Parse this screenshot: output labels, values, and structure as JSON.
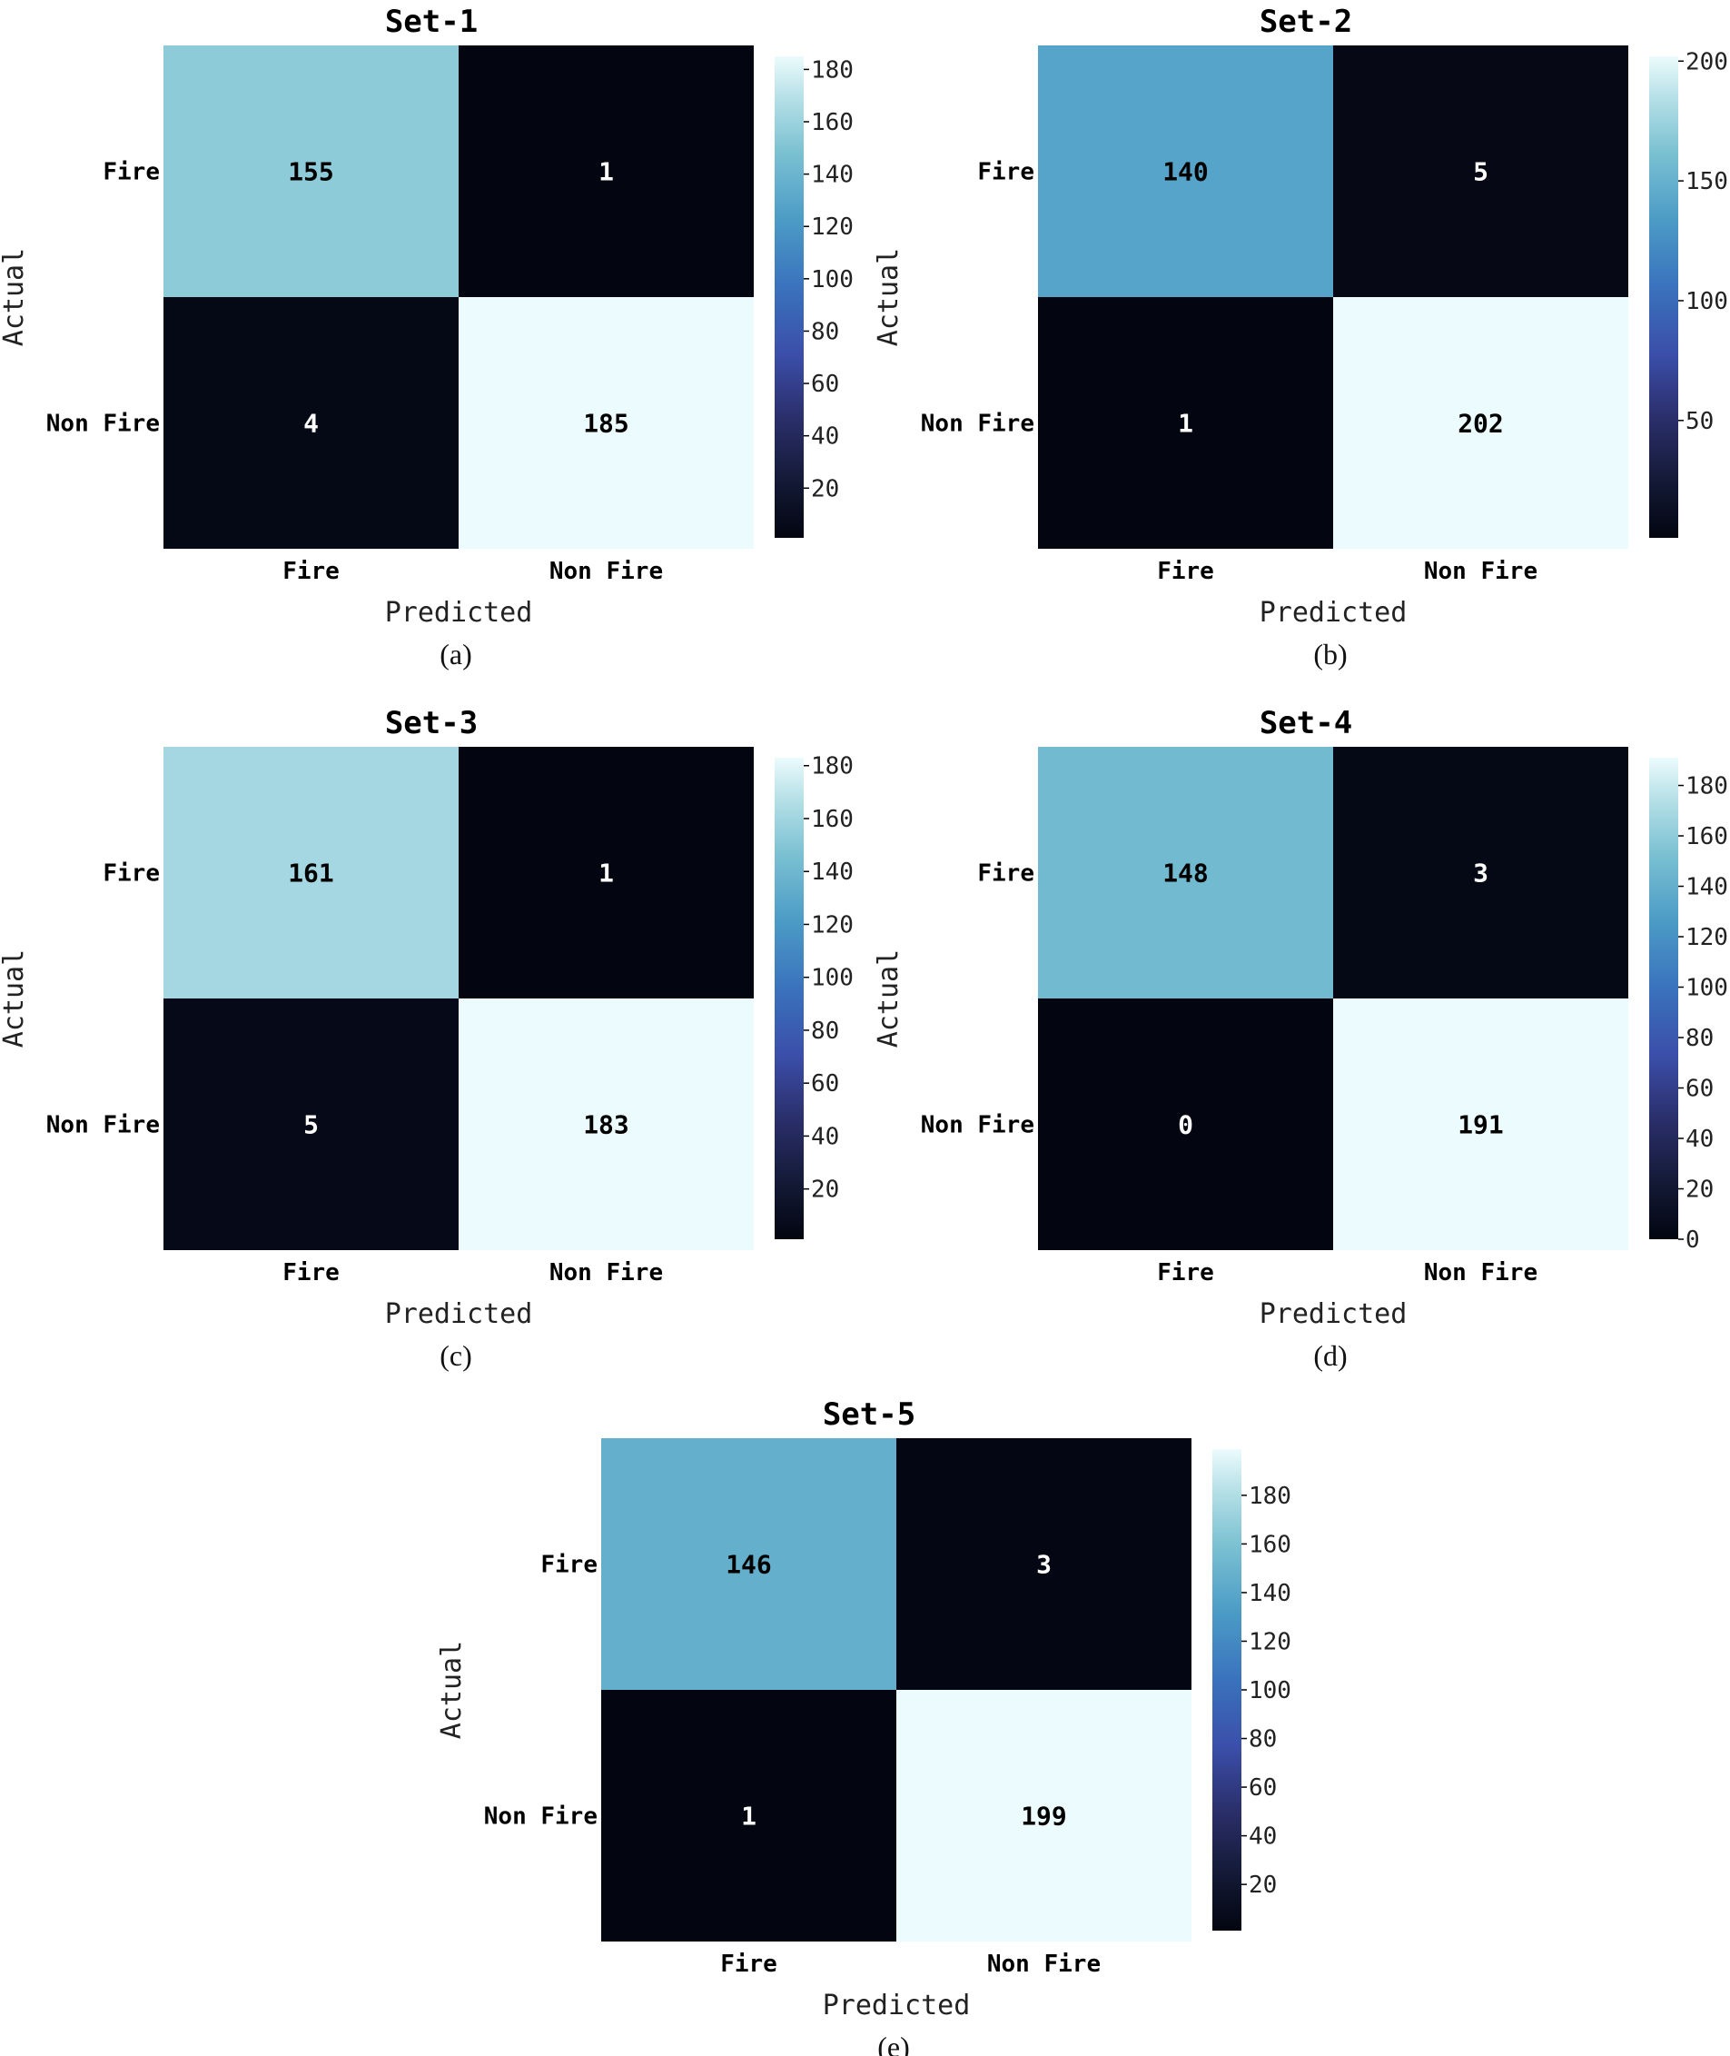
{
  "figure": {
    "x_axis_label": "Predicted",
    "y_axis_label": "Actual"
  },
  "chart_data": [
    {
      "type": "heatmap",
      "title": "Set-1",
      "caption": "(a)",
      "xlabel": "Predicted",
      "ylabel": "Actual",
      "row_labels": [
        "Fire",
        "Non Fire"
      ],
      "col_labels": [
        "Fire",
        "Non Fire"
      ],
      "matrix": [
        [
          155,
          1
        ],
        [
          4,
          185
        ]
      ],
      "colorbar": {
        "range": [
          1,
          185
        ],
        "ticks": [
          20,
          40,
          60,
          80,
          100,
          120,
          140,
          160,
          180
        ]
      }
    },
    {
      "type": "heatmap",
      "title": "Set-2",
      "caption": "(b)",
      "xlabel": "Predicted",
      "ylabel": "Actual",
      "row_labels": [
        "Fire",
        "Non Fire"
      ],
      "col_labels": [
        "Fire",
        "Non Fire"
      ],
      "matrix": [
        [
          140,
          5
        ],
        [
          1,
          202
        ]
      ],
      "colorbar": {
        "range": [
          1,
          202
        ],
        "ticks": [
          50,
          100,
          150,
          200
        ]
      }
    },
    {
      "type": "heatmap",
      "title": "Set-3",
      "caption": "(c)",
      "xlabel": "Predicted",
      "ylabel": "Actual",
      "row_labels": [
        "Fire",
        "Non Fire"
      ],
      "col_labels": [
        "Fire",
        "Non Fire"
      ],
      "matrix": [
        [
          161,
          1
        ],
        [
          5,
          183
        ]
      ],
      "colorbar": {
        "range": [
          1,
          183
        ],
        "ticks": [
          20,
          40,
          60,
          80,
          100,
          120,
          140,
          160,
          180
        ]
      }
    },
    {
      "type": "heatmap",
      "title": "Set-4",
      "caption": "(d)",
      "xlabel": "Predicted",
      "ylabel": "Actual",
      "row_labels": [
        "Fire",
        "Non Fire"
      ],
      "col_labels": [
        "Fire",
        "Non Fire"
      ],
      "matrix": [
        [
          148,
          3
        ],
        [
          0,
          191
        ]
      ],
      "colorbar": {
        "range": [
          0,
          191
        ],
        "ticks": [
          0,
          20,
          40,
          60,
          80,
          100,
          120,
          140,
          160,
          180
        ]
      }
    },
    {
      "type": "heatmap",
      "title": "Set-5",
      "caption": "(e)",
      "xlabel": "Predicted",
      "ylabel": "Actual",
      "row_labels": [
        "Fire",
        "Non Fire"
      ],
      "col_labels": [
        "Fire",
        "Non Fire"
      ],
      "matrix": [
        [
          146,
          3
        ],
        [
          1,
          199
        ]
      ],
      "colorbar": {
        "range": [
          1,
          199
        ],
        "ticks": [
          20,
          40,
          60,
          80,
          100,
          120,
          140,
          160,
          180
        ]
      }
    }
  ]
}
